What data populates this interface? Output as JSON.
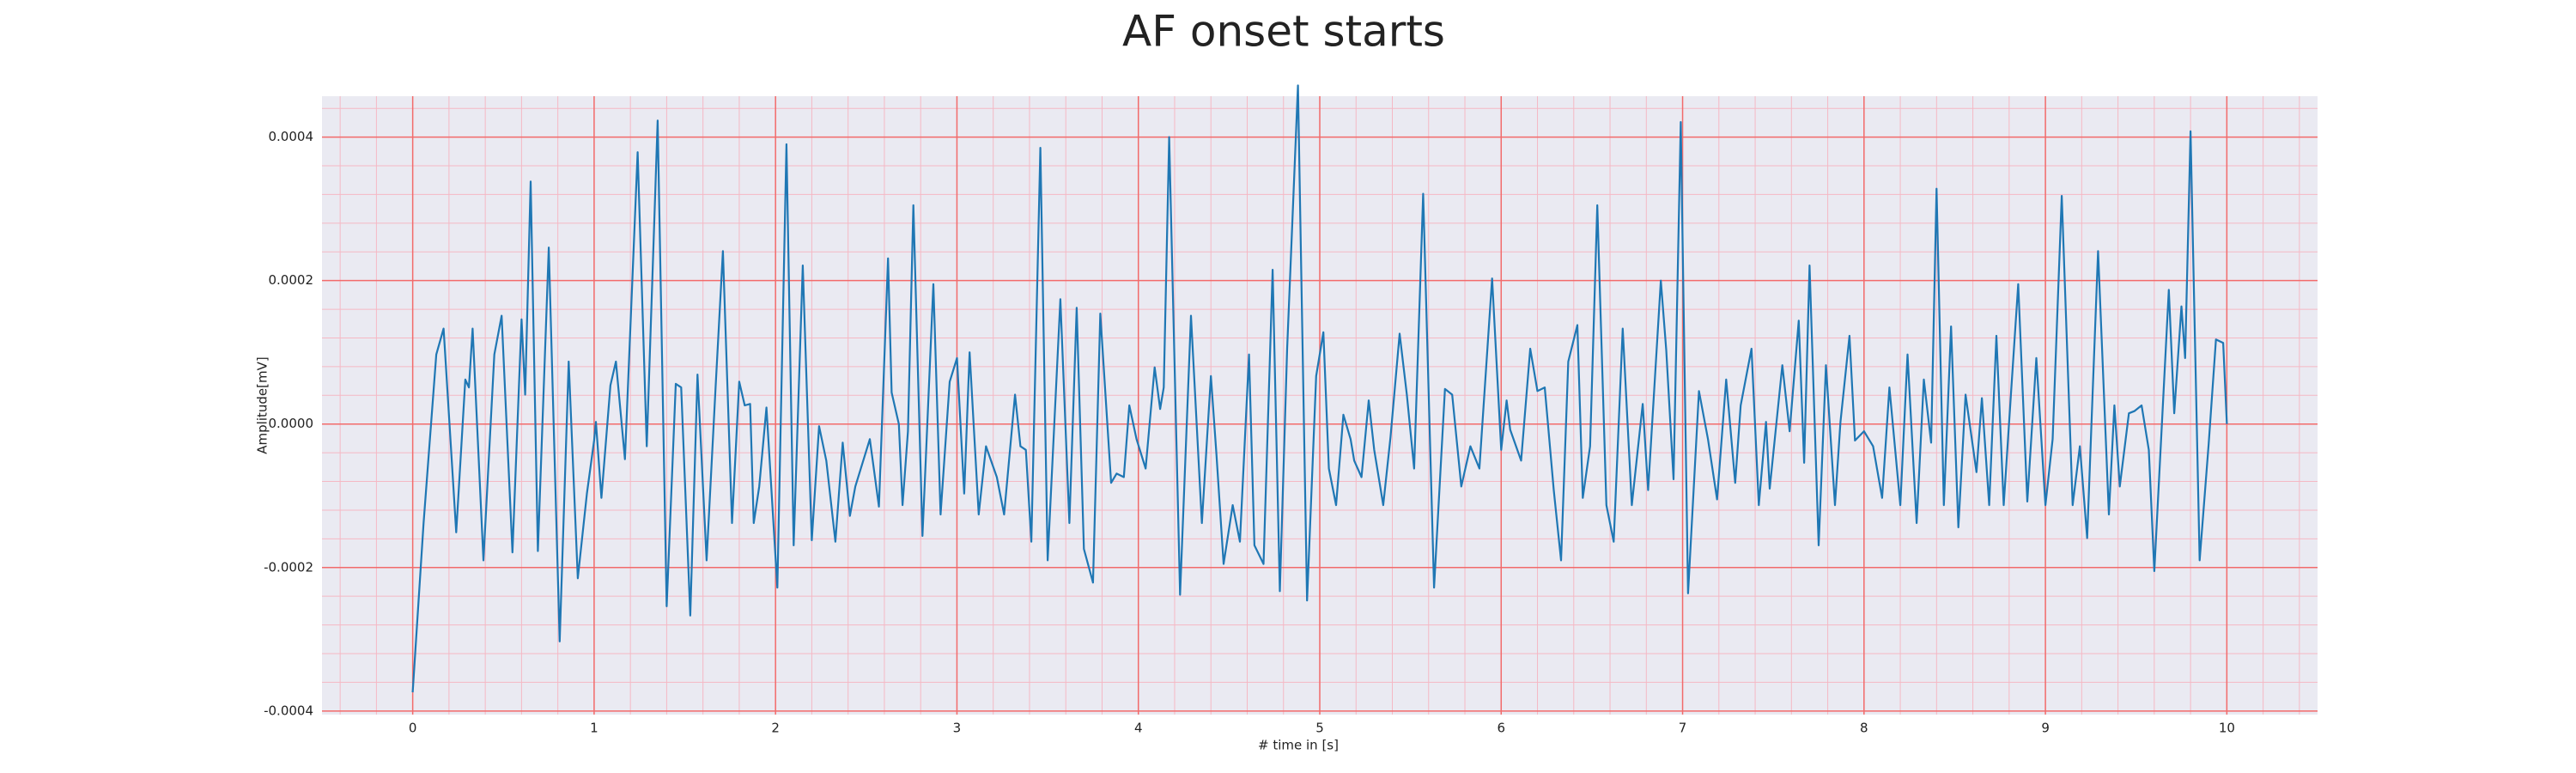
{
  "chart_data": {
    "type": "line",
    "title": "AF onset starts",
    "xlabel": "# time in [s]",
    "ylabel": "Amplitude[mV]",
    "x": [
      0,
      0.06,
      0.13,
      0.17,
      0.24,
      0.29,
      0.31,
      0.33,
      0.39,
      0.45,
      0.49,
      0.55,
      0.6,
      0.62,
      0.65,
      0.69,
      0.75,
      0.81,
      0.86,
      0.91,
      0.96,
      1.0,
      1.01,
      1.04,
      1.09,
      1.12,
      1.17,
      1.24,
      1.29,
      1.35,
      1.4,
      1.45,
      1.48,
      1.53,
      1.57,
      1.62,
      1.67,
      1.71,
      1.76,
      1.8,
      1.83,
      1.86,
      1.88,
      1.91,
      1.95,
      2.01,
      2.06,
      2.1,
      2.15,
      2.2,
      2.24,
      2.28,
      2.33,
      2.37,
      2.41,
      2.44,
      2.52,
      2.57,
      2.62,
      2.64,
      2.68,
      2.7,
      2.73,
      2.76,
      2.81,
      2.87,
      2.91,
      2.96,
      3.0,
      3.04,
      3.07,
      3.12,
      3.16,
      3.22,
      3.26,
      3.32,
      3.35,
      3.38,
      3.41,
      3.46,
      3.5,
      3.57,
      3.62,
      3.66,
      3.7,
      3.75,
      3.79,
      3.85,
      3.88,
      3.92,
      3.95,
      3.99,
      4.04,
      4.09,
      4.12,
      4.14,
      4.17,
      4.23,
      4.29,
      4.35,
      4.4,
      4.43,
      4.47,
      4.52,
      4.56,
      4.61,
      4.64,
      4.69,
      4.74,
      4.78,
      4.82,
      4.88,
      4.93,
      4.98,
      5.02,
      5.05,
      5.09,
      5.13,
      5.17,
      5.19,
      5.23,
      5.27,
      5.3,
      5.35,
      5.39,
      5.44,
      5.48,
      5.52,
      5.57,
      5.63,
      5.69,
      5.73,
      5.78,
      5.83,
      5.88,
      5.95,
      6.0,
      6.03,
      6.05,
      6.11,
      6.16,
      6.2,
      6.24,
      6.29,
      6.33,
      6.37,
      6.42,
      6.45,
      6.49,
      6.53,
      6.58,
      6.62,
      6.67,
      6.72,
      6.78,
      6.81,
      6.88,
      6.91,
      6.95,
      6.99,
      7.03,
      7.09,
      7.14,
      7.19,
      7.24,
      7.29,
      7.32,
      7.38,
      7.42,
      7.46,
      7.48,
      7.55,
      7.59,
      7.64,
      7.67,
      7.7,
      7.75,
      7.79,
      7.84,
      7.87,
      7.92,
      7.95,
      8.0,
      8.05,
      8.1,
      8.14,
      8.2,
      8.24,
      8.29,
      8.33,
      8.37,
      8.4,
      8.44,
      8.48,
      8.52,
      8.56,
      8.62,
      8.65,
      8.69,
      8.73,
      8.77,
      8.81,
      8.85,
      8.9,
      8.95,
      9.0,
      9.04,
      9.09,
      9.15,
      9.19,
      9.23,
      9.26,
      9.29,
      9.35,
      9.38,
      9.41,
      9.46,
      9.49,
      9.53,
      9.57,
      9.6,
      9.68,
      9.71,
      9.75,
      9.77,
      9.8,
      9.85,
      9.9,
      9.94,
      9.98,
      10.0
    ],
    "values": [
      -0.000374,
      -0.000138,
      9.7e-05,
      0.000133,
      -0.000151,
      6.2e-05,
      5.1e-05,
      0.000133,
      -0.00019,
      9.7e-05,
      0.000151,
      -0.000179,
      0.000146,
      4.1e-05,
      0.000338,
      -0.000177,
      0.000246,
      -0.000303,
      8.7e-05,
      -0.000215,
      -9.7e-05,
      -2.3e-05,
      3e-06,
      -0.000103,
      5.4e-05,
      8.7e-05,
      -4.9e-05,
      0.000379,
      -3.1e-05,
      0.000423,
      -0.000254,
      5.6e-05,
      5.1e-05,
      -0.000267,
      6.9e-05,
      -0.00019,
      5.4e-05,
      0.000241,
      -0.000138,
      5.9e-05,
      2.6e-05,
      2.8e-05,
      -0.000138,
      -8.7e-05,
      2.3e-05,
      -0.000228,
      0.00039,
      -0.000169,
      0.000221,
      -0.000162,
      -3e-06,
      -5.1e-05,
      -0.000164,
      -2.6e-05,
      -0.000128,
      -8.7e-05,
      -2.1e-05,
      -0.000115,
      0.000231,
      4.4e-05,
      0,
      -0.000113,
      -1e-05,
      0.000305,
      -0.000156,
      0.000195,
      -0.000126,
      5.9e-05,
      9.2e-05,
      -9.7e-05,
      0.0001,
      -0.000126,
      -3.1e-05,
      -7.4e-05,
      -0.000126,
      4.1e-05,
      -3.1e-05,
      -3.6e-05,
      -0.000164,
      0.000385,
      -0.00019,
      0.000174,
      -0.000138,
      0.000162,
      -0.000174,
      -0.000221,
      0.000154,
      -8.2e-05,
      -6.9e-05,
      -7.4e-05,
      2.6e-05,
      -2.1e-05,
      -6.2e-05,
      7.9e-05,
      2.1e-05,
      5.1e-05,
      0.0004,
      -0.000238,
      0.000151,
      -0.000138,
      6.7e-05,
      -4.1e-05,
      -0.000195,
      -0.000113,
      -0.000164,
      9.7e-05,
      -0.000169,
      -0.000195,
      0.000215,
      -0.000233,
      0.000105,
      0.000472,
      -0.000246,
      6.7e-05,
      0.000128,
      -6.2e-05,
      -0.000113,
      1.3e-05,
      -2.1e-05,
      -5.1e-05,
      -7.4e-05,
      3.3e-05,
      -3.6e-05,
      -0.000113,
      -1.8e-05,
      0.000126,
      4.1e-05,
      -6.2e-05,
      0.000321,
      -0.000228,
      4.9e-05,
      4.1e-05,
      -8.7e-05,
      -3.1e-05,
      -6.2e-05,
      0.000203,
      -3.6e-05,
      3.3e-05,
      -8e-06,
      -5.1e-05,
      0.000105,
      4.6e-05,
      5.1e-05,
      -9.2e-05,
      -0.00019,
      8.7e-05,
      0.000138,
      -0.000103,
      -3.1e-05,
      0.000305,
      -0.000113,
      -0.000164,
      0.000133,
      -0.000113,
      2.8e-05,
      -9.2e-05,
      0.0002,
      0.000103,
      -7.7e-05,
      0.000421,
      -0.000236,
      4.6e-05,
      -2.1e-05,
      -0.000105,
      6.2e-05,
      -8.2e-05,
      2.6e-05,
      0.000105,
      -0.000113,
      3e-06,
      -9e-05,
      8.2e-05,
      -1e-05,
      0.000144,
      -5.4e-05,
      0.000221,
      -0.000169,
      8.2e-05,
      -0.000113,
      3e-06,
      0.000123,
      -2.3e-05,
      -1e-05,
      -3.1e-05,
      -0.000103,
      5.1e-05,
      -0.000113,
      9.7e-05,
      -0.000138,
      6.2e-05,
      -2.6e-05,
      0.000328,
      -0.000113,
      0.000136,
      -0.000144,
      4.1e-05,
      -6.7e-05,
      3.6e-05,
      -0.000113,
      0.000123,
      -0.000113,
      4.1e-05,
      0.000195,
      -0.000108,
      9.2e-05,
      -0.000113,
      -2.1e-05,
      0.000318,
      -0.000113,
      -3.1e-05,
      -0.000159,
      4.1e-05,
      0.000241,
      -0.000126,
      2.6e-05,
      -8.7e-05,
      1.5e-05,
      1.8e-05,
      2.6e-05,
      -3.6e-05,
      -0.000205,
      0.000187,
      1.5e-05,
      0.000164,
      9.2e-05,
      0.000408,
      -0.00019,
      -2.8e-05,
      0.000118,
      0.000113,
      0
    ],
    "color": "#1f77b4",
    "xlim": [
      -0.5,
      10.5
    ],
    "ylim": [
      -0.000405,
      0.000457
    ],
    "xticks": [
      0,
      1,
      2,
      3,
      4,
      5,
      6,
      7,
      8,
      9,
      10
    ],
    "yticks": [
      -0.0004,
      -0.0002,
      {
        "value": 0,
        "label": "0.0000"
      },
      0.0002,
      0.0004
    ],
    "grid": true,
    "minor_grid": true,
    "grid_color": "#f26b6b",
    "minor_grid_color": "#f5b8c4",
    "background": "#eaeaf2"
  }
}
